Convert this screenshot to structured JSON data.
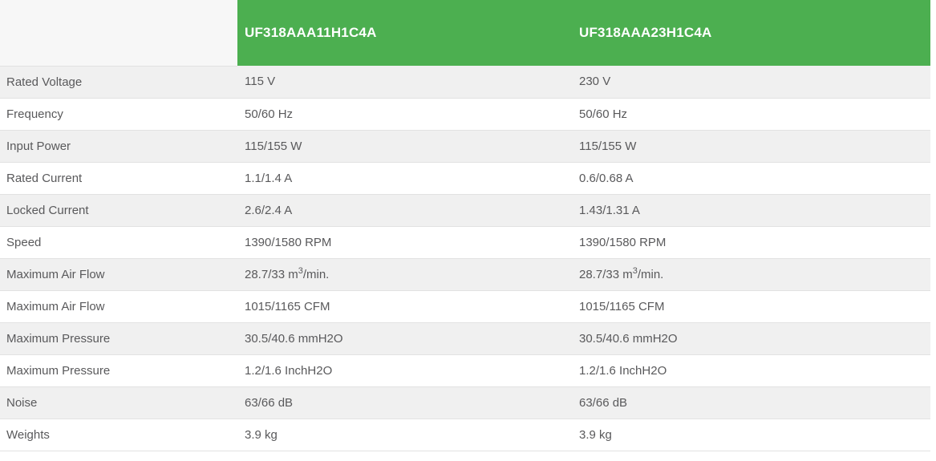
{
  "table": {
    "header": {
      "corner_label": "",
      "columns": [
        "UF318AAA11H1C4A",
        "UF318AAA23H1C4A"
      ]
    },
    "rows": [
      {
        "label": "Rated Voltage",
        "values": [
          "115 V",
          "230 V"
        ]
      },
      {
        "label": "Frequency",
        "values": [
          "50/60 Hz",
          "50/60 Hz"
        ]
      },
      {
        "label": "Input Power",
        "values": [
          "115/155 W",
          "115/155 W"
        ]
      },
      {
        "label": "Rated Current",
        "values": [
          "1.1/1.4 A",
          "0.6/0.68 A"
        ]
      },
      {
        "label": "Locked Current",
        "values": [
          "2.6/2.4 A",
          "1.43/1.31 A"
        ]
      },
      {
        "label": "Speed",
        "values": [
          "1390/1580 RPM",
          "1390/1580 RPM"
        ]
      },
      {
        "label": "Maximum Air Flow",
        "values": [
          "28.7/33 m³/min.",
          "28.7/33 m³/min."
        ]
      },
      {
        "label": "Maximum Air Flow",
        "values": [
          "1015/1165 CFM",
          "1015/1165 CFM"
        ]
      },
      {
        "label": "Maximum Pressure",
        "values": [
          "30.5/40.6 mmH2O",
          "30.5/40.6 mmH2O"
        ]
      },
      {
        "label": "Maximum Pressure",
        "values": [
          "1.2/1.6 InchH2O",
          "1.2/1.6 InchH2O"
        ]
      },
      {
        "label": "Noise",
        "values": [
          "63/66 dB",
          "63/66 dB"
        ]
      },
      {
        "label": "Weights",
        "values": [
          "3.9 kg",
          "3.9 kg"
        ]
      }
    ],
    "colors": {
      "header_bg": "#4caf50",
      "header_text": "#ffffff",
      "corner_bg": "#f7f7f7",
      "row_alt_bg": "#f0f0f0",
      "row_bg": "#ffffff",
      "row_border": "#e2e2e2",
      "body_text": "#59595b"
    }
  }
}
